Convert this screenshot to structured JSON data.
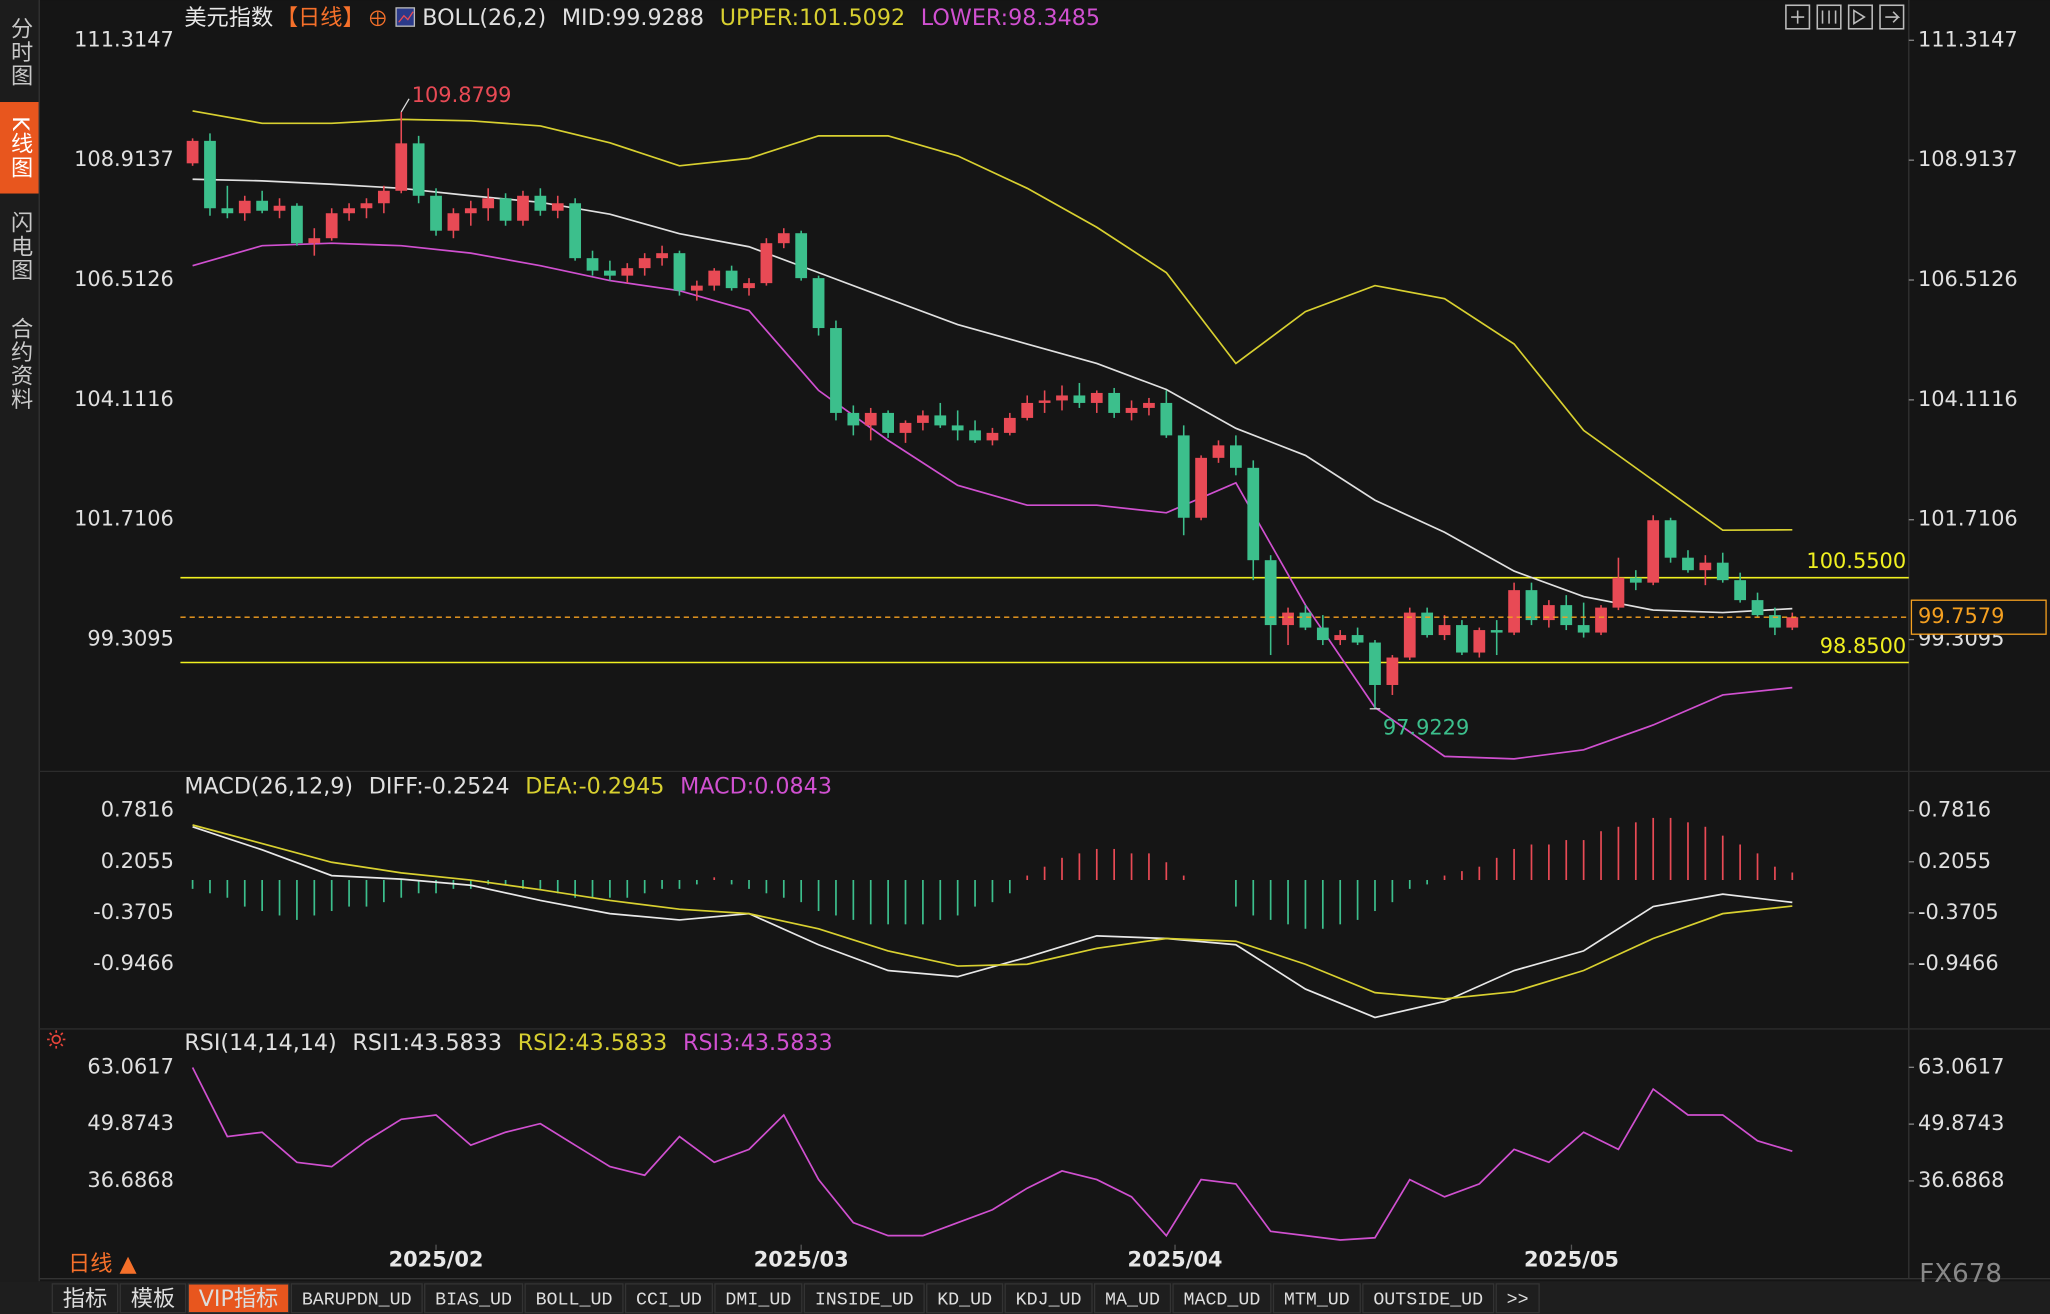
{
  "sidebar": [
    "分时图",
    "K线图",
    "闪电图",
    "合约资料"
  ],
  "period_label": "日线 ▲",
  "watermark": "FX678",
  "bottom_tabs": [
    "指标",
    "模板",
    "VIP指标",
    "BARUPDN_UD",
    "BIAS_UD",
    "BOLL_UD",
    "CCI_UD",
    "DMI_UD",
    "INSIDE_UD",
    "KD_UD",
    "KDJ_UD",
    "MA_UD",
    "MACD_UD",
    "MTM_UD",
    "OUTSIDE_UD",
    ">>"
  ],
  "chart_data": [
    {
      "type": "candlestick",
      "title": "美元指数",
      "period": "【日线】",
      "legend": [
        "BOLL(26,2)",
        "MID:99.9288",
        "UPPER:101.5092",
        "LOWER:98.3485"
      ],
      "legend_colors": [
        "#e0e0e0",
        "#e0e0e0",
        "#d8d030",
        "#d050d0"
      ],
      "up_color": "#e84a55",
      "down_color": "#3cbf8c",
      "xlim": [
        -0.7,
        98.7
      ],
      "ylim": [
        96.8,
        111.99
      ],
      "yticks": [
        111.3147,
        108.9137,
        106.5126,
        104.1116,
        101.7106,
        99.3095
      ],
      "xticks": [
        {
          "value": 14,
          "label": "2025/02"
        },
        {
          "value": 35,
          "label": "2025/03"
        },
        {
          "value": 56.5,
          "label": "2025/04"
        },
        {
          "value": 79.3,
          "label": "2025/05"
        }
      ],
      "candles": [
        [
          108.85,
          109.35,
          108.8,
          109.3
        ],
        [
          109.3,
          109.45,
          107.8,
          107.95
        ],
        [
          107.95,
          108.4,
          107.75,
          107.85
        ],
        [
          107.85,
          108.2,
          107.7,
          108.1
        ],
        [
          108.1,
          108.3,
          107.85,
          107.9
        ],
        [
          107.9,
          108.15,
          107.75,
          108.0
        ],
        [
          108.0,
          108.05,
          107.2,
          107.25
        ],
        [
          107.25,
          107.55,
          107.0,
          107.35
        ],
        [
          107.35,
          107.95,
          107.3,
          107.85
        ],
        [
          107.85,
          108.05,
          107.7,
          107.95
        ],
        [
          107.95,
          108.15,
          107.75,
          108.05
        ],
        [
          108.05,
          108.4,
          107.85,
          108.3
        ],
        [
          108.3,
          109.8799,
          108.25,
          109.25
        ],
        [
          109.25,
          109.4,
          108.05,
          108.2
        ],
        [
          108.2,
          108.35,
          107.4,
          107.5
        ],
        [
          107.5,
          107.95,
          107.35,
          107.85
        ],
        [
          107.85,
          108.1,
          107.6,
          107.95
        ],
        [
          107.95,
          108.35,
          107.7,
          108.15
        ],
        [
          108.15,
          108.25,
          107.6,
          107.7
        ],
        [
          107.7,
          108.3,
          107.6,
          108.2
        ],
        [
          108.2,
          108.35,
          107.8,
          107.9
        ],
        [
          107.9,
          108.2,
          107.75,
          108.05
        ],
        [
          108.05,
          108.15,
          106.9,
          106.95
        ],
        [
          106.95,
          107.1,
          106.6,
          106.7
        ],
        [
          106.7,
          106.9,
          106.5,
          106.6
        ],
        [
          106.6,
          106.85,
          106.45,
          106.75
        ],
        [
          106.75,
          107.05,
          106.6,
          106.95
        ],
        [
          106.95,
          107.2,
          106.8,
          107.05
        ],
        [
          107.05,
          107.1,
          106.2,
          106.3
        ],
        [
          106.3,
          106.5,
          106.1,
          106.4
        ],
        [
          106.4,
          106.75,
          106.3,
          106.7
        ],
        [
          106.7,
          106.8,
          106.3,
          106.35
        ],
        [
          106.35,
          106.55,
          106.2,
          106.45
        ],
        [
          106.45,
          107.35,
          106.4,
          107.25
        ],
        [
          107.25,
          107.55,
          107.15,
          107.45
        ],
        [
          107.45,
          107.5,
          106.5,
          106.55
        ],
        [
          106.55,
          106.6,
          105.4,
          105.55
        ],
        [
          105.55,
          105.7,
          103.7,
          103.85
        ],
        [
          103.85,
          104.0,
          103.4,
          103.6
        ],
        [
          103.6,
          103.95,
          103.3,
          103.85
        ],
        [
          103.85,
          103.9,
          103.35,
          103.45
        ],
        [
          103.45,
          103.7,
          103.25,
          103.65
        ],
        [
          103.65,
          103.9,
          103.5,
          103.8
        ],
        [
          103.8,
          104.05,
          103.55,
          103.6
        ],
        [
          103.6,
          103.9,
          103.3,
          103.5
        ],
        [
          103.5,
          103.7,
          103.25,
          103.3
        ],
        [
          103.3,
          103.55,
          103.2,
          103.45
        ],
        [
          103.45,
          103.85,
          103.4,
          103.75
        ],
        [
          103.75,
          104.2,
          103.7,
          104.05
        ],
        [
          104.05,
          104.3,
          103.85,
          104.1
        ],
        [
          104.1,
          104.4,
          103.9,
          104.2
        ],
        [
          104.2,
          104.45,
          103.95,
          104.05
        ],
        [
          104.05,
          104.3,
          103.85,
          104.25
        ],
        [
          104.25,
          104.35,
          103.75,
          103.85
        ],
        [
          103.85,
          104.1,
          103.7,
          103.95
        ],
        [
          103.95,
          104.15,
          103.8,
          104.05
        ],
        [
          104.05,
          104.3,
          103.35,
          103.4
        ],
        [
          103.4,
          103.6,
          101.4,
          101.75
        ],
        [
          101.75,
          103.0,
          101.7,
          102.95
        ],
        [
          102.95,
          103.3,
          102.85,
          103.2
        ],
        [
          103.2,
          103.4,
          102.6,
          102.75
        ],
        [
          102.75,
          102.9,
          100.5,
          100.9
        ],
        [
          100.9,
          101.0,
          99.0,
          99.6
        ],
        [
          99.6,
          99.95,
          99.2,
          99.85
        ],
        [
          99.85,
          100.0,
          99.5,
          99.55
        ],
        [
          99.55,
          99.8,
          99.2,
          99.3
        ],
        [
          99.3,
          99.5,
          99.2,
          99.4
        ],
        [
          99.4,
          99.55,
          99.2,
          99.25
        ],
        [
          99.25,
          99.3,
          97.9229,
          98.4
        ],
        [
          98.4,
          99.0,
          98.2,
          98.95
        ],
        [
          98.95,
          99.95,
          98.9,
          99.85
        ],
        [
          99.85,
          99.95,
          99.35,
          99.4
        ],
        [
          99.4,
          99.8,
          99.3,
          99.6
        ],
        [
          99.6,
          99.7,
          99.0,
          99.05
        ],
        [
          99.05,
          99.55,
          98.95,
          99.5
        ],
        [
          99.5,
          99.7,
          99.0,
          99.45
        ],
        [
          99.45,
          100.45,
          99.4,
          100.3
        ],
        [
          100.3,
          100.45,
          99.6,
          99.7
        ],
        [
          99.7,
          100.1,
          99.55,
          100.0
        ],
        [
          100.0,
          100.2,
          99.5,
          99.6
        ],
        [
          99.6,
          100.05,
          99.35,
          99.45
        ],
        [
          99.45,
          100.0,
          99.4,
          99.95
        ],
        [
          99.95,
          100.95,
          99.9,
          100.55
        ],
        [
          100.55,
          100.7,
          100.3,
          100.45
        ],
        [
          100.45,
          101.8,
          100.4,
          101.7
        ],
        [
          101.7,
          101.75,
          100.85,
          100.95
        ],
        [
          100.95,
          101.1,
          100.65,
          100.7
        ],
        [
          100.7,
          101.0,
          100.4,
          100.85
        ],
        [
          100.85,
          101.05,
          100.45,
          100.5
        ],
        [
          100.5,
          100.65,
          100.05,
          100.1
        ],
        [
          100.1,
          100.25,
          99.75,
          99.8
        ],
        [
          99.8,
          99.95,
          99.4,
          99.55
        ],
        [
          99.55,
          99.85,
          99.5,
          99.7579
        ]
      ],
      "series": [
        {
          "color": "#e0e0e0",
          "x": [
            0,
            4,
            8,
            12,
            16,
            20,
            24,
            28,
            32,
            36,
            40,
            44,
            48,
            52,
            56,
            60,
            64,
            68,
            72,
            76,
            80,
            84,
            88,
            92
          ],
          "values": [
            108.53,
            108.5,
            108.43,
            108.35,
            108.2,
            108.07,
            107.83,
            107.44,
            107.18,
            106.66,
            106.14,
            105.62,
            105.23,
            104.84,
            104.32,
            103.54,
            103.0,
            102.1,
            101.46,
            100.68,
            100.17,
            99.9,
            99.85,
            99.9288
          ]
        },
        {
          "color": "#d8d030",
          "x": [
            0,
            4,
            8,
            12,
            16,
            20,
            24,
            28,
            32,
            36,
            40,
            44,
            48,
            52,
            56,
            60,
            64,
            68,
            72,
            76,
            80,
            84,
            88,
            92
          ],
          "values": [
            109.9,
            109.65,
            109.65,
            109.73,
            109.7,
            109.6,
            109.26,
            108.8,
            108.95,
            109.4,
            109.4,
            109.0,
            108.35,
            107.57,
            106.66,
            104.84,
            105.88,
            106.4,
            106.14,
            105.23,
            103.5,
            102.5,
            101.5,
            101.5092
          ]
        },
        {
          "color": "#d050d0",
          "x": [
            0,
            4,
            8,
            12,
            16,
            20,
            24,
            28,
            32,
            36,
            40,
            44,
            48,
            52,
            56,
            60,
            64,
            68,
            72,
            76,
            80,
            84,
            88,
            92
          ],
          "values": [
            106.8,
            107.2,
            107.25,
            107.2,
            107.05,
            106.8,
            106.5,
            106.3,
            105.9,
            104.3,
            103.3,
            102.4,
            102.0,
            102.0,
            101.85,
            102.45,
            100.0,
            97.95,
            96.97,
            96.92,
            97.1,
            97.6,
            98.2,
            98.3485
          ]
        }
      ],
      "levels": [
        {
          "value": 100.55,
          "label": "100.5500",
          "color": "#f0f020"
        },
        {
          "value": 98.85,
          "label": "98.8500",
          "color": "#f0f020"
        }
      ],
      "last_price_color": "#f5a020",
      "high_color": "#e84a55",
      "low_color": "#3cbf8c"
    },
    {
      "type": "macd",
      "legend": [
        "MACD(26,12,9)",
        "DIFF:-0.2524",
        "DEA:-0.2945",
        "MACD:0.0843"
      ],
      "legend_colors": [
        "#e0e0e0",
        "#e0e0e0",
        "#d8d030",
        "#d050d0"
      ],
      "xlim": [
        -0.7,
        98.7
      ],
      "ylim": [
        -1.65,
        0.9
      ],
      "yticks": [
        0.7816,
        0.2055,
        -0.3705,
        -0.9466
      ],
      "up_color": "#e84a55",
      "down_color": "#3cbf8c",
      "series": [
        {
          "color": "#e8e8e8",
          "x": [
            0,
            4,
            8,
            12,
            16,
            20,
            24,
            28,
            32,
            36,
            40,
            44,
            48,
            52,
            56,
            60,
            64,
            68,
            72,
            76,
            80,
            84,
            88,
            92
          ],
          "values": [
            0.6,
            0.34,
            0.05,
            0.01,
            -0.06,
            -0.23,
            -0.38,
            -0.45,
            -0.38,
            -0.73,
            -1.02,
            -1.09,
            -0.87,
            -0.63,
            -0.66,
            -0.73,
            -1.23,
            -1.55,
            -1.37,
            -1.02,
            -0.8,
            -0.3,
            -0.16,
            -0.2524
          ]
        },
        {
          "color": "#d8d030",
          "x": [
            0,
            4,
            8,
            12,
            16,
            20,
            24,
            28,
            32,
            36,
            40,
            44,
            48,
            52,
            56,
            60,
            64,
            68,
            72,
            76,
            80,
            84,
            88,
            92
          ],
          "values": [
            0.62,
            0.41,
            0.2,
            0.08,
            0.0,
            -0.11,
            -0.23,
            -0.33,
            -0.38,
            -0.55,
            -0.8,
            -0.97,
            -0.95,
            -0.77,
            -0.66,
            -0.69,
            -0.95,
            -1.27,
            -1.34,
            -1.26,
            -1.02,
            -0.66,
            -0.38,
            -0.2945
          ]
        }
      ],
      "histogram": [
        -0.1,
        -0.15,
        -0.2,
        -0.3,
        -0.35,
        -0.4,
        -0.45,
        -0.4,
        -0.35,
        -0.3,
        -0.3,
        -0.25,
        -0.2,
        -0.15,
        -0.15,
        -0.1,
        -0.1,
        -0.05,
        -0.05,
        -0.1,
        -0.1,
        -0.15,
        -0.2,
        -0.2,
        -0.2,
        -0.2,
        -0.15,
        -0.1,
        -0.1,
        -0.05,
        0.03,
        -0.05,
        -0.1,
        -0.15,
        -0.2,
        -0.25,
        -0.35,
        -0.4,
        -0.45,
        -0.5,
        -0.5,
        -0.5,
        -0.5,
        -0.45,
        -0.4,
        -0.3,
        -0.25,
        -0.15,
        0.05,
        0.15,
        0.25,
        0.3,
        0.35,
        0.35,
        0.3,
        0.3,
        0.2,
        0.05,
        0.0,
        0.0,
        -0.3,
        -0.4,
        -0.45,
        -0.5,
        -0.55,
        -0.55,
        -0.5,
        -0.45,
        -0.35,
        -0.25,
        -0.1,
        -0.05,
        0.05,
        0.1,
        0.15,
        0.25,
        0.35,
        0.4,
        0.4,
        0.45,
        0.45,
        0.55,
        0.6,
        0.65,
        0.7,
        0.7,
        0.65,
        0.6,
        0.5,
        0.4,
        0.3,
        0.15,
        0.0843
      ]
    },
    {
      "type": "line",
      "legend": [
        "RSI(14,14,14)",
        "RSI1:43.5833",
        "RSI2:43.5833",
        "RSI3:43.5833"
      ],
      "legend_colors": [
        "#e0e0e0",
        "#e0e0e0",
        "#d8d030",
        "#d050d0"
      ],
      "xlim": [
        -0.7,
        98.7
      ],
      "ylim": [
        22.5,
        66.5
      ],
      "yticks": [
        63.0617,
        49.8743,
        36.6868
      ],
      "series": [
        {
          "color": "#d050d0",
          "x": [
            0,
            2,
            4,
            6,
            8,
            10,
            12,
            14,
            16,
            18,
            20,
            22,
            24,
            26,
            28,
            30,
            32,
            34,
            36,
            38,
            40,
            42,
            44,
            46,
            48,
            50,
            52,
            54,
            56,
            58,
            60,
            62,
            64,
            66,
            68,
            70,
            72,
            74,
            76,
            78,
            80,
            82,
            84,
            86,
            88,
            90,
            92
          ],
          "values": [
            63,
            47,
            48,
            41,
            40,
            46,
            51,
            52,
            45,
            48,
            50,
            45,
            40,
            38,
            47,
            41,
            44,
            52,
            37,
            27,
            24,
            24,
            27,
            30,
            35,
            39,
            37,
            33,
            24,
            37,
            36,
            25,
            24,
            23,
            23.5,
            37,
            33,
            36,
            44,
            41,
            48,
            44,
            58,
            52,
            52,
            46,
            43.5833
          ]
        }
      ]
    }
  ]
}
